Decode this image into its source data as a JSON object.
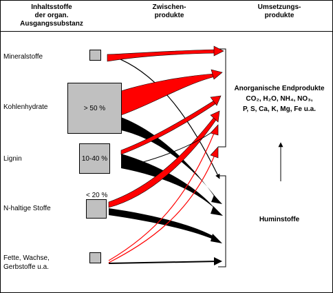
{
  "headers": {
    "col1_line1": "Inhaltsstoffe",
    "col1_line2": "der organ. Ausgangssubstanz",
    "col2_line1": "Zwischen-",
    "col2_line2": "produkte",
    "col3_line1": "Umsetzungs-",
    "col3_line2": "produkte"
  },
  "substances": {
    "mineral": "Mineralstoffe",
    "carbs": "Kohlenhydrate",
    "lignin": "Lignin",
    "nitrogen": "N-haltige Stoffe",
    "fats_line1": "Fette, Wachse,",
    "fats_line2": "Gerbstoffe u.a."
  },
  "box_values": {
    "carbs": "> 50 %",
    "lignin": "10-40 %",
    "nitrogen": "< 20 %"
  },
  "products": {
    "inorganic_title": "Anorganische Endprodukte",
    "inorganic_line1": "CO₂, H₂O, NH₄, NO₃,",
    "inorganic_line2": "P, S, Ca, K, Mg, Fe u.a.",
    "humus": "Huminstoffe"
  },
  "colors": {
    "mineralization_flow": "#ff0000",
    "humification_flow": "#000000",
    "box_fill": "#c0c0c0"
  }
}
